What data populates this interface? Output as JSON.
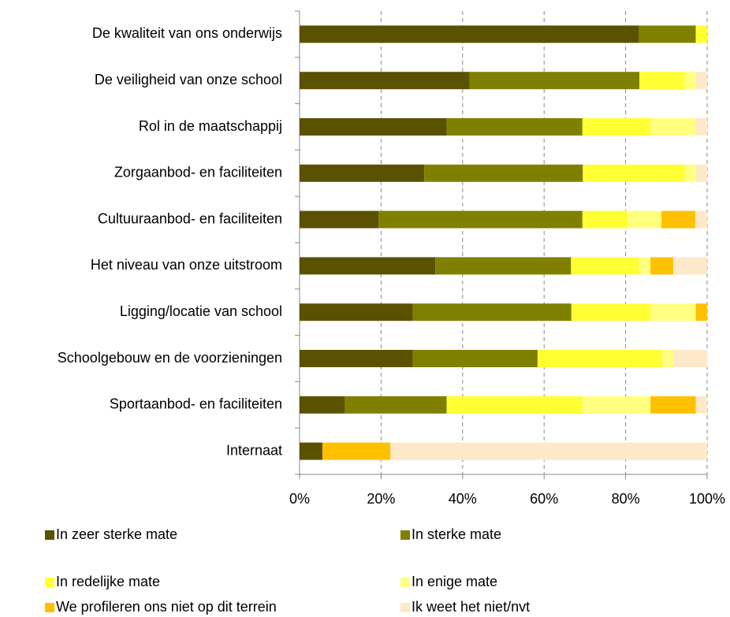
{
  "chart_data": {
    "type": "bar",
    "orientation": "horizontal",
    "stacked": true,
    "categories": [
      "De kwaliteit van ons onderwijs",
      "De veiligheid van onze school",
      "Rol in de maatschappij",
      "Zorgaanbod- en faciliteiten",
      "Cultuuraanbod- en faciliteiten",
      "Het niveau van onze uitstroom",
      "Ligging/locatie van school",
      "Schoolgebouw en de voorzieningen",
      "Sportaanbod- en faciliteiten",
      "Internaat"
    ],
    "series": [
      {
        "name": "In zeer sterke mate",
        "color": "#5a5200",
        "values": [
          83.3,
          41.7,
          36.1,
          30.6,
          19.4,
          33.3,
          27.8,
          27.8,
          11.1,
          5.6
        ]
      },
      {
        "name": "In sterke mate",
        "color": "#808000",
        "values": [
          13.9,
          41.7,
          33.3,
          38.9,
          50,
          33.3,
          38.9,
          30.6,
          25,
          0
        ]
      },
      {
        "name": "In redelijke mate",
        "color": "#ffff33",
        "values": [
          2.8,
          11.1,
          16.7,
          25,
          11.1,
          16.7,
          19.4,
          30.6,
          33.3,
          0
        ]
      },
      {
        "name": "In enige mate",
        "color": "#ffff80",
        "values": [
          0,
          2.8,
          11.1,
          2.8,
          8.3,
          2.8,
          11.1,
          2.8,
          16.7,
          0
        ]
      },
      {
        "name": "We profileren ons niet op dit terrein",
        "color": "#ffc000",
        "values": [
          0,
          0,
          0,
          0,
          8.3,
          5.6,
          2.8,
          0,
          11.1,
          16.7
        ]
      },
      {
        "name": "Ik weet het niet/nvt",
        "color": "#fde9c9",
        "values": [
          0,
          2.7,
          2.8,
          2.7,
          2.9,
          8.3,
          0,
          8.3,
          2.8,
          77.7
        ]
      }
    ],
    "xlim": [
      0,
      100
    ],
    "xticks": [
      {
        "value": 0,
        "label": "0%"
      },
      {
        "value": 20,
        "label": "20%"
      },
      {
        "value": 40,
        "label": "40%"
      },
      {
        "value": 60,
        "label": "60%"
      },
      {
        "value": 80,
        "label": "80%"
      },
      {
        "value": 100,
        "label": "100%"
      }
    ],
    "grid": true,
    "legend": "bottom"
  }
}
